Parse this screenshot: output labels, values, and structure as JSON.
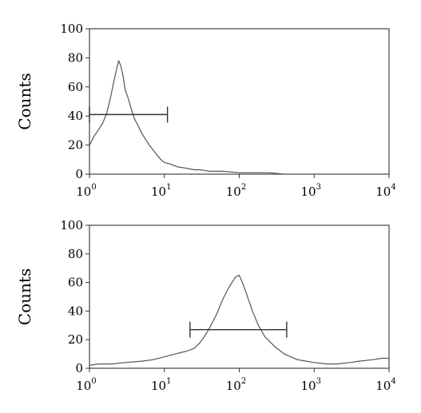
{
  "chart_data": [
    {
      "type": "line",
      "xscale": "log",
      "xlim": [
        1,
        10000
      ],
      "ylim": [
        0,
        100
      ],
      "ylabel": "Counts",
      "xticks": [
        {
          "base": "10",
          "exp": "0",
          "value": 1
        },
        {
          "base": "10",
          "exp": "1",
          "value": 10
        },
        {
          "base": "10",
          "exp": "2",
          "value": 100
        },
        {
          "base": "10",
          "exp": "3",
          "value": 1000
        },
        {
          "base": "10",
          "exp": "4",
          "value": 10000
        }
      ],
      "yticks": [
        {
          "label": "0",
          "value": 0
        },
        {
          "label": "20",
          "value": 20
        },
        {
          "label": "40",
          "value": 40
        },
        {
          "label": "60",
          "value": 60
        },
        {
          "label": "80",
          "value": 80
        },
        {
          "label": "100",
          "value": 100
        }
      ],
      "series": [
        {
          "x": [
            1,
            1.05,
            1.15,
            1.3,
            1.5,
            1.7,
            1.9,
            2.1,
            2.3,
            2.45,
            2.6,
            2.8,
            3.0,
            3.3,
            3.6,
            4.0,
            4.5,
            5.0,
            5.6,
            6.3,
            7.0,
            8.0,
            9.0,
            10.0,
            12.0,
            15.0,
            20.0,
            25.0,
            30.0,
            40.0,
            60.0,
            100.0,
            150.0,
            250.0,
            400.0
          ],
          "y": [
            20,
            22,
            26,
            30,
            35,
            42,
            52,
            63,
            72,
            78,
            75,
            68,
            58,
            52,
            45,
            38,
            33,
            28,
            24,
            20,
            17,
            13,
            10,
            8,
            7,
            5,
            4,
            3,
            3,
            2,
            2,
            1,
            1,
            1,
            0
          ]
        }
      ],
      "gate": {
        "x1": 1,
        "x2": 11,
        "y": 41
      }
    },
    {
      "type": "line",
      "xscale": "log",
      "xlim": [
        1,
        10000
      ],
      "ylim": [
        0,
        100
      ],
      "ylabel": "Counts",
      "xticks": [
        {
          "base": "10",
          "exp": "0",
          "value": 1
        },
        {
          "base": "10",
          "exp": "1",
          "value": 10
        },
        {
          "base": "10",
          "exp": "2",
          "value": 100
        },
        {
          "base": "10",
          "exp": "3",
          "value": 1000
        },
        {
          "base": "10",
          "exp": "4",
          "value": 10000
        }
      ],
      "yticks": [
        {
          "label": "0",
          "value": 0
        },
        {
          "label": "20",
          "value": 20
        },
        {
          "label": "40",
          "value": 40
        },
        {
          "label": "60",
          "value": 60
        },
        {
          "label": "80",
          "value": 80
        },
        {
          "label": "100",
          "value": 100
        }
      ],
      "series": [
        {
          "x": [
            1,
            1.3,
            2,
            3,
            5,
            7,
            10,
            14,
            20,
            25,
            30,
            35,
            40,
            50,
            60,
            70,
            80,
            90,
            100,
            110,
            125,
            150,
            180,
            220,
            300,
            400,
            600,
            1000,
            1500,
            2000,
            3000,
            4000,
            6000,
            8000,
            10000
          ],
          "y": [
            2,
            3,
            3,
            4,
            5,
            6,
            8,
            10,
            12,
            14,
            18,
            23,
            28,
            38,
            48,
            55,
            60,
            64,
            65,
            60,
            52,
            40,
            30,
            22,
            15,
            10,
            6,
            4,
            3,
            3,
            4,
            5,
            6,
            7,
            7
          ]
        }
      ],
      "gate": {
        "x1": 22,
        "x2": 430,
        "y": 27
      }
    }
  ]
}
